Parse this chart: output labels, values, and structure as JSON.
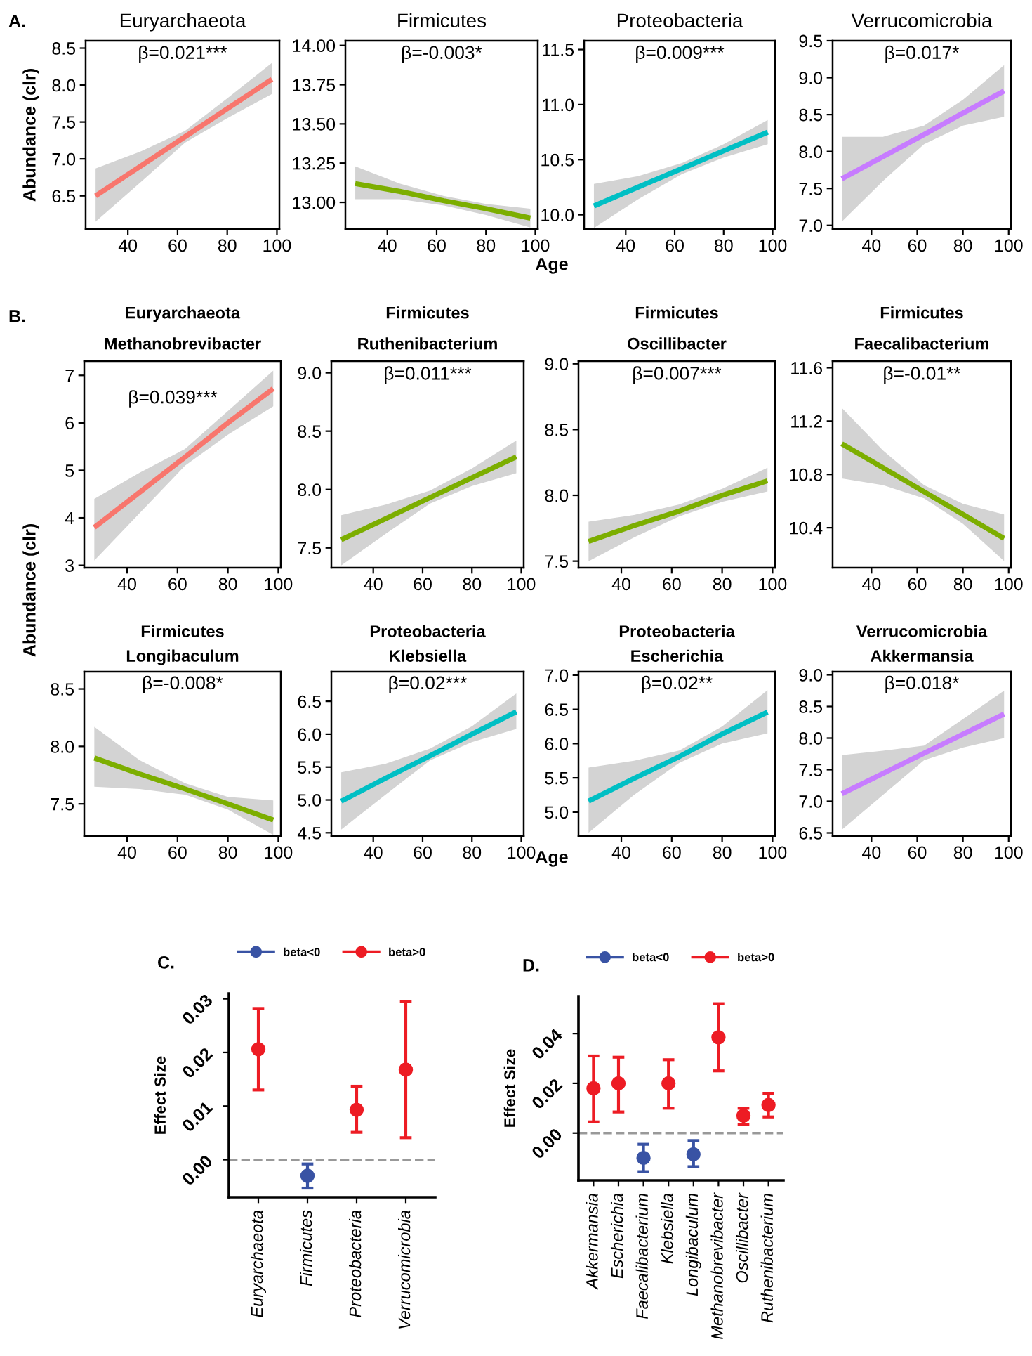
{
  "chart_data": [
    {
      "type": "line",
      "title": "Euryarchaeota",
      "ylabel": "Abundance (clr)",
      "annotations": [
        "β=0.021***",
        "A."
      ],
      "xlim": [
        23,
        101
      ],
      "xticks": [
        40,
        60,
        80,
        100
      ],
      "ylim": [
        6.05,
        8.6
      ],
      "yticks": [
        {
          "value": 6.5,
          "label": "6.5"
        },
        {
          "value": 7.0,
          "label": "7.0"
        },
        {
          "value": 7.5,
          "label": "7.5"
        },
        {
          "value": 8.0,
          "label": "8.0"
        },
        {
          "value": 8.5,
          "label": "8.5"
        }
      ],
      "grid": false,
      "legend": false,
      "series": [
        {
          "color": "#f8766d",
          "x": [
            27,
            45,
            63,
            80,
            98
          ],
          "values": [
            6.5,
            6.9,
            7.3,
            7.68,
            8.08
          ],
          "lower": [
            6.15,
            6.68,
            7.22,
            7.55,
            7.88
          ],
          "upper": [
            6.87,
            7.1,
            7.38,
            7.82,
            8.3
          ]
        }
      ]
    },
    {
      "type": "line",
      "title": "Firmicutes",
      "xlabel": "Age",
      "annotations": [
        "β=-0.003*"
      ],
      "xlim": [
        23,
        101
      ],
      "xticks": [
        40,
        60,
        80,
        100
      ],
      "ylim": [
        12.83,
        14.03
      ],
      "yticks": [
        {
          "value": 13.0,
          "label": "13.00"
        },
        {
          "value": 13.25,
          "label": "13.25"
        },
        {
          "value": 13.5,
          "label": "13.50"
        },
        {
          "value": 13.75,
          "label": "13.75"
        },
        {
          "value": 14.0,
          "label": "14.00"
        }
      ],
      "grid": false,
      "legend": false,
      "series": [
        {
          "color": "#7cae00",
          "x": [
            27,
            45,
            63,
            80,
            98
          ],
          "values": [
            13.12,
            13.07,
            13.01,
            12.96,
            12.9
          ],
          "lower": [
            13.02,
            13.02,
            12.98,
            12.92,
            12.84
          ],
          "upper": [
            13.23,
            13.12,
            13.04,
            12.99,
            12.96
          ]
        }
      ]
    },
    {
      "type": "line",
      "title": "Proteobacteria",
      "annotations": [
        "β=0.009***"
      ],
      "xlim": [
        23,
        101
      ],
      "xticks": [
        40,
        60,
        80,
        100
      ],
      "ylim": [
        9.87,
        11.58
      ],
      "yticks": [
        {
          "value": 10.0,
          "label": "10.0"
        },
        {
          "value": 10.5,
          "label": "10.5"
        },
        {
          "value": 11.0,
          "label": "11.0"
        },
        {
          "value": 11.5,
          "label": "11.5"
        }
      ],
      "grid": false,
      "legend": false,
      "series": [
        {
          "color": "#00bfc4",
          "x": [
            27,
            45,
            63,
            80,
            98
          ],
          "values": [
            10.08,
            10.25,
            10.42,
            10.58,
            10.75
          ],
          "lower": [
            9.88,
            10.14,
            10.37,
            10.52,
            10.64
          ],
          "upper": [
            10.28,
            10.35,
            10.47,
            10.64,
            10.86
          ]
        }
      ]
    },
    {
      "type": "line",
      "title": "Verrucomicrobia",
      "annotations": [
        "β=0.017*"
      ],
      "xlim": [
        23,
        101
      ],
      "xticks": [
        40,
        60,
        80,
        100
      ],
      "ylim": [
        6.95,
        9.5
      ],
      "yticks": [
        {
          "value": 7.0,
          "label": "7.0"
        },
        {
          "value": 7.5,
          "label": "7.5"
        },
        {
          "value": 8.0,
          "label": "8.0"
        },
        {
          "value": 8.5,
          "label": "8.5"
        },
        {
          "value": 9.0,
          "label": "9.0"
        },
        {
          "value": 9.5,
          "label": "9.5"
        }
      ],
      "grid": false,
      "legend": false,
      "series": [
        {
          "color": "#c77cff",
          "x": [
            27,
            45,
            63,
            80,
            98
          ],
          "values": [
            7.63,
            7.93,
            8.23,
            8.52,
            8.82
          ],
          "lower": [
            7.05,
            7.6,
            8.1,
            8.35,
            8.47
          ],
          "upper": [
            8.2,
            8.2,
            8.35,
            8.7,
            9.17
          ]
        }
      ]
    },
    {
      "type": "line",
      "title": "Euryarchaeota",
      "subtitle": "Methanobrevibacter",
      "annotations": [
        "β=0.039***",
        "B."
      ],
      "xlim": [
        23,
        101
      ],
      "xticks": [
        40,
        60,
        80,
        100
      ],
      "ylim": [
        2.95,
        7.3
      ],
      "yticks": [
        3,
        4,
        5,
        6,
        7
      ],
      "grid": false,
      "legend": false,
      "series": [
        {
          "color": "#f8766d",
          "x": [
            27,
            45,
            63,
            80,
            98
          ],
          "values": [
            3.8,
            4.54,
            5.28,
            6.0,
            6.72
          ],
          "lower": [
            3.1,
            4.1,
            5.1,
            5.75,
            6.35
          ],
          "upper": [
            4.4,
            4.95,
            5.45,
            6.25,
            7.1
          ]
        }
      ]
    },
    {
      "type": "line",
      "title": "Firmicutes",
      "subtitle": "Ruthenibacterium",
      "annotations": [
        "β=0.011***"
      ],
      "xlim": [
        23,
        101
      ],
      "xticks": [
        40,
        60,
        80,
        100
      ],
      "ylim": [
        7.33,
        9.1
      ],
      "yticks": [
        {
          "value": 7.5,
          "label": "7.5"
        },
        {
          "value": 8.0,
          "label": "8.0"
        },
        {
          "value": 8.5,
          "label": "8.5"
        },
        {
          "value": 9.0,
          "label": "9.0"
        }
      ],
      "grid": false,
      "legend": false,
      "series": [
        {
          "color": "#7cae00",
          "x": [
            27,
            45,
            63,
            80,
            98
          ],
          "values": [
            7.57,
            7.75,
            7.93,
            8.1,
            8.28
          ],
          "lower": [
            7.35,
            7.62,
            7.88,
            8.03,
            8.14
          ],
          "upper": [
            7.78,
            7.87,
            7.99,
            8.18,
            8.42
          ]
        }
      ]
    },
    {
      "type": "line",
      "title": "Firmicutes",
      "subtitle": "Oscillibacter",
      "annotations": [
        "β=0.007***"
      ],
      "xlim": [
        23,
        101
      ],
      "xticks": [
        40,
        60,
        80,
        100
      ],
      "ylim": [
        7.45,
        9.02
      ],
      "yticks": [
        {
          "value": 7.5,
          "label": "7.5"
        },
        {
          "value": 8.0,
          "label": "8.0"
        },
        {
          "value": 8.5,
          "label": "8.5"
        },
        {
          "value": 9.0,
          "label": "9.0"
        }
      ],
      "grid": false,
      "legend": false,
      "series": [
        {
          "color": "#7cae00",
          "x": [
            27,
            45,
            63,
            80,
            98
          ],
          "values": [
            7.65,
            7.77,
            7.88,
            8.0,
            8.11
          ],
          "lower": [
            7.5,
            7.68,
            7.84,
            7.95,
            8.03
          ],
          "upper": [
            7.8,
            7.85,
            7.93,
            8.05,
            8.21
          ]
        }
      ]
    },
    {
      "type": "line",
      "title": "Firmicutes",
      "subtitle": "Faecalibacterium",
      "annotations": [
        "β=-0.01**"
      ],
      "xlim": [
        23,
        101
      ],
      "xticks": [
        40,
        60,
        80,
        100
      ],
      "ylim": [
        10.1,
        11.65
      ],
      "yticks": [
        10.4,
        10.8,
        11.2,
        11.6
      ],
      "grid": false,
      "legend": false,
      "series": [
        {
          "color": "#7cae00",
          "x": [
            27,
            45,
            63,
            80,
            98
          ],
          "values": [
            11.03,
            10.85,
            10.67,
            10.5,
            10.32
          ],
          "lower": [
            10.77,
            10.72,
            10.62,
            10.43,
            10.15
          ],
          "upper": [
            11.3,
            10.98,
            10.72,
            10.58,
            10.5
          ]
        }
      ]
    },
    {
      "type": "line",
      "title": "Firmicutes",
      "subtitle": "Longibaculum",
      "ylabel": "Abundance (clr)",
      "annotations": [
        "β=-0.008*"
      ],
      "xlim": [
        23,
        101
      ],
      "xticks": [
        40,
        60,
        80,
        100
      ],
      "ylim": [
        7.22,
        8.65
      ],
      "yticks": [
        {
          "value": 7.5,
          "label": "7.5"
        },
        {
          "value": 8.0,
          "label": "8.0"
        },
        {
          "value": 8.5,
          "label": "8.5"
        }
      ],
      "grid": false,
      "legend": false,
      "series": [
        {
          "color": "#7cae00",
          "x": [
            27,
            45,
            63,
            80,
            98
          ],
          "values": [
            7.9,
            7.76,
            7.63,
            7.5,
            7.36
          ],
          "lower": [
            7.65,
            7.63,
            7.58,
            7.45,
            7.23
          ],
          "upper": [
            8.17,
            7.88,
            7.68,
            7.56,
            7.53
          ]
        }
      ]
    },
    {
      "type": "line",
      "title": "Proteobacteria",
      "subtitle": "Klebsiella",
      "xlabel": "Age",
      "annotations": [
        "β=0.02***"
      ],
      "xlim": [
        23,
        101
      ],
      "xticks": [
        40,
        60,
        80,
        100
      ],
      "ylim": [
        4.45,
        6.95
      ],
      "yticks": [
        {
          "value": 4.5,
          "label": "4.5"
        },
        {
          "value": 5.0,
          "label": "5.0"
        },
        {
          "value": 5.5,
          "label": "5.5"
        },
        {
          "value": 6.0,
          "label": "6.0"
        },
        {
          "value": 6.5,
          "label": "6.5"
        }
      ],
      "grid": false,
      "legend": false,
      "series": [
        {
          "color": "#00bfc4",
          "x": [
            27,
            45,
            63,
            80,
            98
          ],
          "values": [
            4.98,
            5.33,
            5.67,
            6.0,
            6.34
          ],
          "lower": [
            4.55,
            5.08,
            5.6,
            5.88,
            6.08
          ],
          "upper": [
            5.42,
            5.55,
            5.78,
            6.12,
            6.62
          ]
        }
      ]
    },
    {
      "type": "line",
      "title": "Proteobacteria",
      "subtitle": "Escherichia",
      "annotations": [
        "β=0.02**"
      ],
      "xlim": [
        23,
        101
      ],
      "xticks": [
        40,
        60,
        80,
        100
      ],
      "ylim": [
        4.65,
        7.05
      ],
      "yticks": [
        {
          "value": 5.0,
          "label": "5.0"
        },
        {
          "value": 5.5,
          "label": "5.5"
        },
        {
          "value": 6.0,
          "label": "6.0"
        },
        {
          "value": 6.5,
          "label": "6.5"
        },
        {
          "value": 7.0,
          "label": "7.0"
        }
      ],
      "grid": false,
      "legend": false,
      "series": [
        {
          "color": "#00bfc4",
          "x": [
            27,
            45,
            63,
            80,
            98
          ],
          "values": [
            5.16,
            5.49,
            5.81,
            6.14,
            6.46
          ],
          "lower": [
            4.7,
            5.25,
            5.72,
            6.0,
            6.15
          ],
          "upper": [
            5.65,
            5.75,
            5.9,
            6.25,
            6.78
          ]
        }
      ]
    },
    {
      "type": "line",
      "title": "Verrucomicrobia",
      "subtitle": "Akkermansia",
      "annotations": [
        "β=0.018*"
      ],
      "xlim": [
        23,
        101
      ],
      "xticks": [
        40,
        60,
        80,
        100
      ],
      "ylim": [
        6.45,
        9.05
      ],
      "yticks": [
        {
          "value": 6.5,
          "label": "6.5"
        },
        {
          "value": 7.0,
          "label": "7.0"
        },
        {
          "value": 7.5,
          "label": "7.5"
        },
        {
          "value": 8.0,
          "label": "8.0"
        },
        {
          "value": 8.5,
          "label": "8.5"
        },
        {
          "value": 9.0,
          "label": "9.0"
        }
      ],
      "grid": false,
      "legend": false,
      "series": [
        {
          "color": "#c77cff",
          "x": [
            27,
            45,
            63,
            80,
            98
          ],
          "values": [
            7.12,
            7.44,
            7.76,
            8.06,
            8.38
          ],
          "lower": [
            6.55,
            7.1,
            7.65,
            7.85,
            8.0
          ],
          "upper": [
            7.73,
            7.8,
            7.88,
            8.3,
            8.75
          ]
        }
      ]
    },
    {
      "type": "scatter",
      "ylabel": "Effect Size",
      "annotations": [
        "C."
      ],
      "categories": [
        "Euryarchaeota",
        "Firmicutes",
        "Proteobacteria",
        "Verrucomicrobia"
      ],
      "ylim": [
        -0.007,
        0.031
      ],
      "yticks": [
        {
          "value": 0,
          "label": "0.00"
        },
        {
          "value": 0.01,
          "label": "0.01"
        },
        {
          "value": 0.02,
          "label": "0.02"
        },
        {
          "value": 0.03,
          "label": "0.03"
        }
      ],
      "grid": false,
      "legend": "top",
      "marker": "circle",
      "ref_lines": [
        {
          "axis": "y",
          "value": 0,
          "color": "#999999",
          "line_style": "dashed"
        }
      ],
      "series": [
        {
          "name": "beta<0",
          "color": "#3953a4",
          "values": [
            null,
            -0.003,
            null,
            null
          ],
          "errors": [
            null,
            [
              -0.0053,
              -0.0008
            ],
            null,
            null
          ]
        },
        {
          "name": "beta>0",
          "color": "#ed1c24",
          "values": [
            0.0206,
            null,
            0.0093,
            0.0168
          ],
          "errors": [
            [
              0.013,
              0.0282
            ],
            null,
            [
              0.0051,
              0.0137
            ],
            [
              0.0041,
              0.0295
            ]
          ]
        }
      ]
    },
    {
      "type": "scatter",
      "ylabel": "Effect Size",
      "annotations": [
        "D."
      ],
      "categories": [
        "Akkermansia",
        "Escherichia",
        "Faecalibacterium",
        "Klebsiella",
        "Longibaculum",
        "Methanobrevibacter",
        "Oscillibacter",
        "Ruthenibacterium"
      ],
      "ylim": [
        -0.019,
        0.055
      ],
      "yticks": [
        {
          "value": 0,
          "label": "0.00"
        },
        {
          "value": 0.02,
          "label": "0.02"
        },
        {
          "value": 0.04,
          "label": "0.04"
        }
      ],
      "grid": false,
      "legend": "top",
      "marker": "circle",
      "ref_lines": [
        {
          "axis": "y",
          "value": 0,
          "color": "#999999",
          "line_style": "dashed"
        }
      ],
      "series": [
        {
          "name": "beta<0",
          "color": "#3953a4",
          "values": [
            null,
            null,
            -0.01,
            null,
            -0.0085,
            null,
            null,
            null
          ],
          "errors": [
            null,
            null,
            [
              -0.0155,
              -0.0045
            ],
            null,
            [
              -0.0135,
              -0.003
            ],
            null,
            null,
            null
          ]
        },
        {
          "name": "beta>0",
          "color": "#ed1c24",
          "values": [
            0.018,
            0.02,
            null,
            0.02,
            null,
            0.0385,
            0.007,
            0.0113
          ],
          "errors": [
            [
              0.0045,
              0.031
            ],
            [
              0.0085,
              0.0305
            ],
            null,
            [
              0.01,
              0.0295
            ],
            null,
            [
              0.025,
              0.052
            ],
            [
              0.0035,
              0.01
            ],
            [
              0.0065,
              0.016
            ]
          ]
        }
      ]
    }
  ]
}
